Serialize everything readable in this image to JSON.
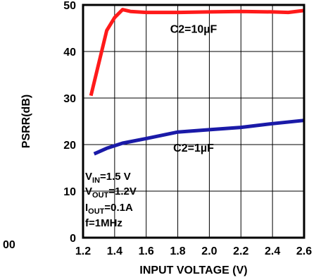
{
  "chart_data": {
    "type": "line",
    "title": "",
    "xlabel": "INPUT VOLTAGE (V)",
    "ylabel": "PSRR(dB)",
    "xlim": [
      1.2,
      2.6
    ],
    "ylim": [
      0,
      50
    ],
    "x_ticks": [
      "1.2",
      "1.4",
      "1.6",
      "1.8",
      "2.0",
      "2.2",
      "2.4",
      "2.6"
    ],
    "y_ticks": [
      "0",
      "10",
      "20",
      "30",
      "40",
      "50"
    ],
    "grid": true,
    "series": [
      {
        "name": "C2=10µF",
        "color": "#ff1a1a",
        "x": [
          1.25,
          1.3,
          1.35,
          1.4,
          1.45,
          1.5,
          1.6,
          1.8,
          2.0,
          2.2,
          2.4,
          2.5,
          2.6
        ],
        "y": [
          30.5,
          37.5,
          44.5,
          47.3,
          49,
          48.6,
          48.4,
          48.4,
          48.5,
          48.6,
          48.5,
          48.4,
          48.8
        ]
      },
      {
        "name": "C2=1µF",
        "color": "#1a1aa8",
        "x": [
          1.27,
          1.35,
          1.45,
          1.6,
          1.8,
          2.0,
          2.2,
          2.4,
          2.6
        ],
        "y": [
          18,
          19.2,
          20.3,
          21.3,
          22.7,
          23.2,
          23.7,
          24.5,
          25.2
        ]
      }
    ],
    "annotations": [
      {
        "text": "C2=10µF",
        "x": 1.9,
        "y": 44
      },
      {
        "text": "C2=1µF",
        "x": 1.9,
        "y": 18.5
      }
    ],
    "conditions": {
      "vin": {
        "main": "V",
        "sub": "IN",
        "rest": "=1.5 V"
      },
      "vout": {
        "main": "V",
        "sub": "OUT",
        "rest": "=1.2V"
      },
      "iout": {
        "main": "I",
        "sub": "OUT",
        "rest": "=0.1A"
      },
      "freq": {
        "main": "f=1MHz",
        "sub": "",
        "rest": ""
      }
    }
  },
  "cut_label": "00"
}
